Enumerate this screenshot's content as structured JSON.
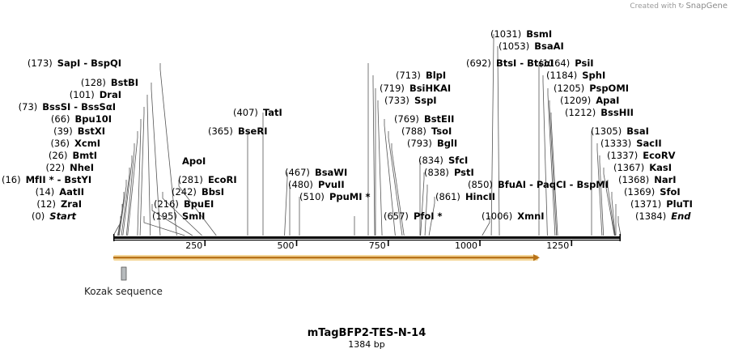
{
  "credit": {
    "prefix": "Created with",
    "brand": "SnapGene"
  },
  "map": {
    "title": "mTagBFP2-TES-N-14",
    "subtitle": "1384 bp",
    "length": 1384,
    "ticks": [
      250,
      500,
      750,
      1000,
      1250
    ],
    "feature": {
      "label": "Kozak sequence",
      "start": 3,
      "end": 9,
      "arrow_start": 0,
      "arrow_end": 1175
    }
  },
  "sites": [
    {
      "pos": "(0)",
      "name": "Start",
      "pos_bp": 0,
      "label_side": "left"
    },
    {
      "pos": "(12)",
      "name": "ZraI",
      "pos_bp": 12,
      "label_side": "left"
    },
    {
      "pos": "(14)",
      "name": "AatII",
      "pos_bp": 14,
      "label_side": "left"
    },
    {
      "pos": "(16)",
      "name": "MfII * - BstYI",
      "pos_bp": 16,
      "label_side": "left"
    },
    {
      "pos": "(22)",
      "name": "NheI",
      "pos_bp": 22,
      "label_side": "left"
    },
    {
      "pos": "(26)",
      "name": "BmtI",
      "pos_bp": 26,
      "label_side": "left"
    },
    {
      "pos": "(36)",
      "name": "XcmI",
      "pos_bp": 36,
      "label_side": "left"
    },
    {
      "pos": "(39)",
      "name": "BstXI",
      "pos_bp": 39,
      "label_side": "left"
    },
    {
      "pos": "(66)",
      "name": "Bpu10I",
      "pos_bp": 66,
      "label_side": "left"
    },
    {
      "pos": "(73)",
      "name": "BssSI - BssSαI",
      "pos_bp": 73,
      "label_side": "left"
    },
    {
      "pos": "(101)",
      "name": "DraI",
      "pos_bp": 101,
      "label_side": "left"
    },
    {
      "pos": "(128)",
      "name": "BstBI",
      "pos_bp": 128,
      "label_side": "left"
    },
    {
      "pos": "(173)",
      "name": "SapI - BspQI",
      "pos_bp": 173,
      "label_side": "left"
    },
    {
      "pos": "(195)",
      "name": "SmlI",
      "pos_bp": 195,
      "label_side": "right"
    },
    {
      "pos": "(216)",
      "name": "BpuEI",
      "pos_bp": 216,
      "label_side": "right"
    },
    {
      "pos": "(242)",
      "name": "BbsI",
      "pos_bp": 242,
      "label_side": "right"
    },
    {
      "pos": "(281)",
      "name": "EcoRI",
      "pos_bp": 281,
      "label_side": "right"
    },
    {
      "pos": "",
      "name": "ApoI",
      "pos_bp": 281,
      "label_side": "right"
    },
    {
      "pos": "(365)",
      "name": "BseRI",
      "pos_bp": 365,
      "label_side": "right"
    },
    {
      "pos": "(407)",
      "name": "TatI",
      "pos_bp": 407,
      "label_side": "right"
    },
    {
      "pos": "(467)",
      "name": "BsaWI",
      "pos_bp": 467,
      "label_side": "left"
    },
    {
      "pos": "(480)",
      "name": "PvuII",
      "pos_bp": 480,
      "label_side": "left"
    },
    {
      "pos": "(510)",
      "name": "PpuMI *",
      "pos_bp": 510,
      "label_side": "left"
    },
    {
      "pos": "(657)",
      "name": "PfoI *",
      "pos_bp": 657,
      "label_side": "left"
    },
    {
      "pos": "(692)",
      "name": "BtsI - BtsαI",
      "pos_bp": 692,
      "label_side": "left"
    },
    {
      "pos": "(713)",
      "name": "BlpI",
      "pos_bp": 713,
      "label_side": "left"
    },
    {
      "pos": "(719)",
      "name": "BsiHKAI",
      "pos_bp": 719,
      "label_side": "left"
    },
    {
      "pos": "(733)",
      "name": "SspI",
      "pos_bp": 733,
      "label_side": "left"
    },
    {
      "pos": "(769)",
      "name": "BstEII",
      "pos_bp": 769,
      "label_side": "left"
    },
    {
      "pos": "(788)",
      "name": "TsoI",
      "pos_bp": 788,
      "label_side": "left"
    },
    {
      "pos": "(793)",
      "name": "BglI",
      "pos_bp": 793,
      "label_side": "left"
    },
    {
      "pos": "(834)",
      "name": "SfcI",
      "pos_bp": 834,
      "label_side": "left"
    },
    {
      "pos": "(838)",
      "name": "PstI",
      "pos_bp": 838,
      "label_side": "left"
    },
    {
      "pos": "(850)",
      "name": "BfuAI - PaqCI - BspMI",
      "pos_bp": 850,
      "label_side": "left"
    },
    {
      "pos": "(861)",
      "name": "HincII",
      "pos_bp": 861,
      "label_side": "left"
    },
    {
      "pos": "(1006)",
      "name": "XmnI",
      "pos_bp": 1006,
      "label_side": "left"
    },
    {
      "pos": "(1031)",
      "name": "BsmI",
      "pos_bp": 1031,
      "label_side": "left"
    },
    {
      "pos": "(1053)",
      "name": "BsaAI",
      "pos_bp": 1053,
      "label_side": "left"
    },
    {
      "pos": "(1164)",
      "name": "PsiI",
      "pos_bp": 1164,
      "label_side": "left"
    },
    {
      "pos": "(1184)",
      "name": "SphI",
      "pos_bp": 1184,
      "label_side": "left"
    },
    {
      "pos": "(1205)",
      "name": "PspOMI",
      "pos_bp": 1205,
      "label_side": "left"
    },
    {
      "pos": "(1209)",
      "name": "ApaI",
      "pos_bp": 1209,
      "label_side": "left"
    },
    {
      "pos": "(1212)",
      "name": "BssHII",
      "pos_bp": 1212,
      "label_side": "left"
    },
    {
      "pos": "(1305)",
      "name": "BsaI",
      "pos_bp": 1305,
      "label_side": "left"
    },
    {
      "pos": "(1333)",
      "name": "SacII",
      "pos_bp": 1333,
      "label_side": "left"
    },
    {
      "pos": "(1337)",
      "name": "EcoRV",
      "pos_bp": 1337,
      "label_side": "left"
    },
    {
      "pos": "(1367)",
      "name": "KasI",
      "pos_bp": 1367,
      "label_side": "left"
    },
    {
      "pos": "(1368)",
      "name": "NarI",
      "pos_bp": 1368,
      "label_side": "left"
    },
    {
      "pos": "(1369)",
      "name": "SfoI",
      "pos_bp": 1369,
      "label_side": "left"
    },
    {
      "pos": "(1371)",
      "name": "PluTI",
      "pos_bp": 1371,
      "label_side": "left"
    },
    {
      "pos": "(1384)",
      "name": "End",
      "pos_bp": 1384,
      "label_side": "left"
    }
  ]
}
